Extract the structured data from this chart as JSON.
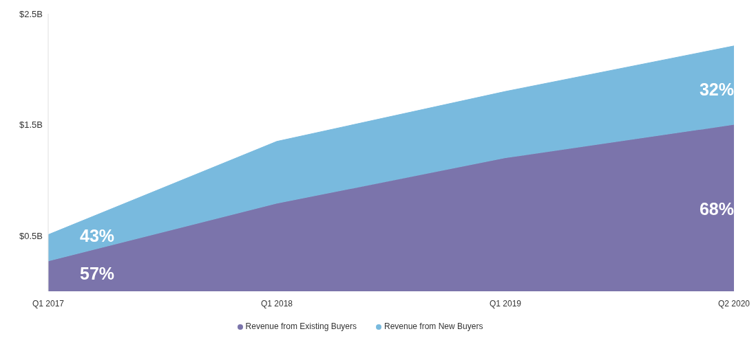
{
  "chart_data": {
    "type": "area",
    "stacked": true,
    "categories": [
      "Q1 2017",
      "Q1 2018",
      "Q1 2019",
      "Q2 2020"
    ],
    "series": [
      {
        "name": "Revenue from Existing Buyers",
        "color": "#7b74ab",
        "values": [
          0.27,
          0.79,
          1.2,
          1.5
        ]
      },
      {
        "name": "Revenue from New Buyers",
        "color": "#79bade",
        "values": [
          0.24,
          0.56,
          0.6,
          0.71
        ]
      }
    ],
    "ylim": [
      0,
      2.5
    ],
    "yticks": [
      {
        "value": 0.5,
        "label": "$0.5B"
      },
      {
        "value": 1.5,
        "label": "$1.5B"
      },
      {
        "value": 2.5,
        "label": "$2.5B"
      }
    ],
    "grid": false,
    "legend": "bottom",
    "annotations": [
      "57%",
      "43%",
      "68%",
      "32%"
    ]
  }
}
